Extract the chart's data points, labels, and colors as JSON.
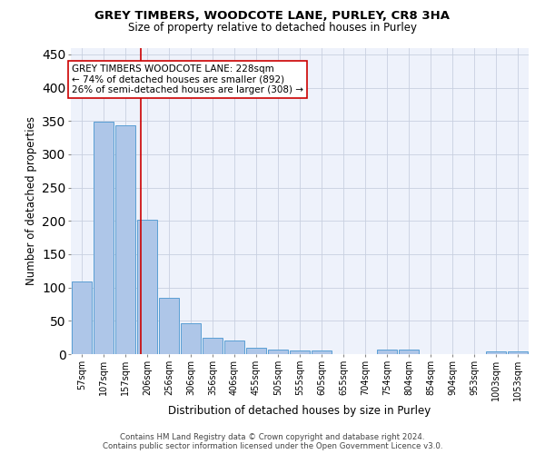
{
  "title": "GREY TIMBERS, WOODCOTE LANE, PURLEY, CR8 3HA",
  "subtitle": "Size of property relative to detached houses in Purley",
  "xlabel": "Distribution of detached houses by size in Purley",
  "ylabel": "Number of detached properties",
  "footer_line1": "Contains HM Land Registry data © Crown copyright and database right 2024.",
  "footer_line2": "Contains public sector information licensed under the Open Government Licence v3.0.",
  "categories": [
    "57sqm",
    "107sqm",
    "157sqm",
    "206sqm",
    "256sqm",
    "306sqm",
    "356sqm",
    "406sqm",
    "455sqm",
    "505sqm",
    "555sqm",
    "605sqm",
    "655sqm",
    "704sqm",
    "754sqm",
    "804sqm",
    "854sqm",
    "904sqm",
    "953sqm",
    "1003sqm",
    "1053sqm"
  ],
  "values": [
    109,
    349,
    343,
    202,
    84,
    47,
    24,
    21,
    10,
    7,
    5,
    5,
    0,
    0,
    7,
    7,
    0,
    0,
    0,
    4,
    4
  ],
  "bar_color": "#aec6e8",
  "bar_edge_color": "#5a9fd4",
  "annotation_text": "GREY TIMBERS WOODCOTE LANE: 228sqm\n← 74% of detached houses are smaller (892)\n26% of semi-detached houses are larger (308) →",
  "vline_x": 2.72,
  "vline_color": "#cc0000",
  "annotation_box_color": "#ffffff",
  "annotation_box_edge": "#cc0000",
  "grid_color": "#c8d0e0",
  "background_color": "#eef2fb",
  "ylim": [
    0,
    460
  ],
  "yticks": [
    0,
    50,
    100,
    150,
    200,
    250,
    300,
    350,
    400,
    450
  ],
  "title_fontsize": 9.5,
  "subtitle_fontsize": 8.5
}
